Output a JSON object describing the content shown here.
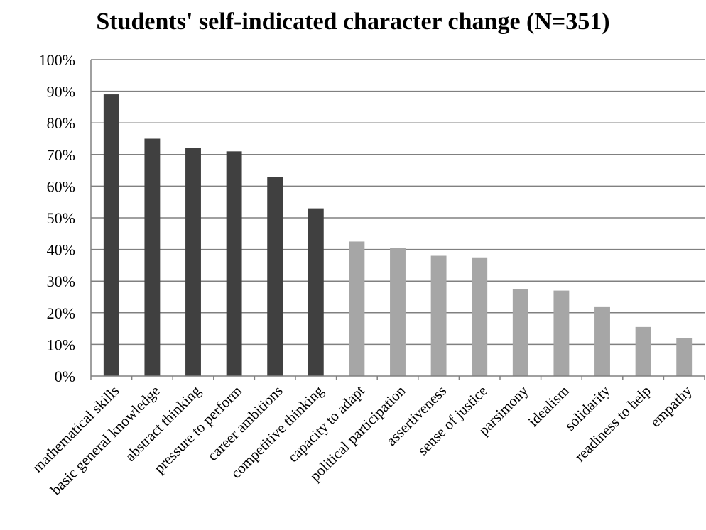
{
  "chart_data": {
    "type": "bar",
    "title": "Students' self-indicated character change (N=351)",
    "xlabel": "",
    "ylabel": "",
    "ylim": [
      0,
      100
    ],
    "y_ticks": [
      "0%",
      "10%",
      "20%",
      "30%",
      "40%",
      "50%",
      "60%",
      "70%",
      "80%",
      "90%",
      "100%"
    ],
    "grid": true,
    "categories": [
      "mathematical skills",
      "basic general knowledge",
      "abstract thinking",
      "pressure to perform",
      "career ambitions",
      "competitive thinking",
      "capacity to adapt",
      "political participation",
      "assertiveness",
      "sense of justice",
      "parsimony",
      "idealism",
      "solidarity",
      "readiness to help",
      "empathy"
    ],
    "values": [
      89,
      75,
      72,
      71,
      63,
      53,
      42.5,
      40.5,
      38,
      37.5,
      27.5,
      27,
      22,
      15.5,
      12
    ],
    "colors": [
      "#404040",
      "#404040",
      "#404040",
      "#404040",
      "#404040",
      "#404040",
      "#a6a6a6",
      "#a6a6a6",
      "#a6a6a6",
      "#a6a6a6",
      "#a6a6a6",
      "#a6a6a6",
      "#a6a6a6",
      "#a6a6a6",
      "#a6a6a6"
    ],
    "gridline_color": "#808080"
  }
}
